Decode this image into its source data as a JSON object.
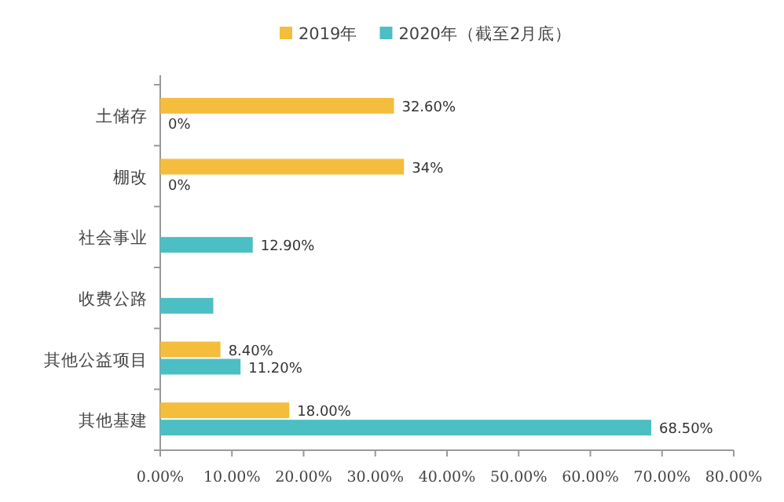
{
  "chart_data": {
    "type": "bar",
    "orientation": "horizontal",
    "legend": "top",
    "categories": [
      "土储存",
      "棚改",
      "社会事业",
      "收费公路",
      "其他公益项目",
      "其他基建"
    ],
    "series": [
      {
        "name": "2019年",
        "color": "#f4bd3c",
        "values": [
          32.6,
          34,
          null,
          null,
          8.4,
          18
        ],
        "value_labels": [
          "32.60%",
          "34%",
          null,
          null,
          "8.40%",
          "18.00%"
        ]
      },
      {
        "name": "2020年（截至2月底）",
        "color": "#4bbfc3",
        "values": [
          0,
          0,
          12.9,
          7.4,
          11.2,
          68.5
        ],
        "value_labels": [
          "0%",
          "0%",
          "12.90%",
          null,
          "11.20%",
          "68.50%"
        ]
      }
    ],
    "xlim": [
      0,
      80
    ],
    "xticks": [
      {
        "value": 0,
        "label": "0.00%"
      },
      {
        "value": 10,
        "label": "10.00%"
      },
      {
        "value": 20,
        "label": "20.00%"
      },
      {
        "value": 30,
        "label": "30.00%"
      },
      {
        "value": 40,
        "label": "40.00%"
      },
      {
        "value": 50,
        "label": "50.00%"
      },
      {
        "value": 60,
        "label": "60.00%"
      },
      {
        "value": 70,
        "label": "70.00%"
      },
      {
        "value": 80,
        "label": "80.00%"
      }
    ],
    "grid": false
  }
}
